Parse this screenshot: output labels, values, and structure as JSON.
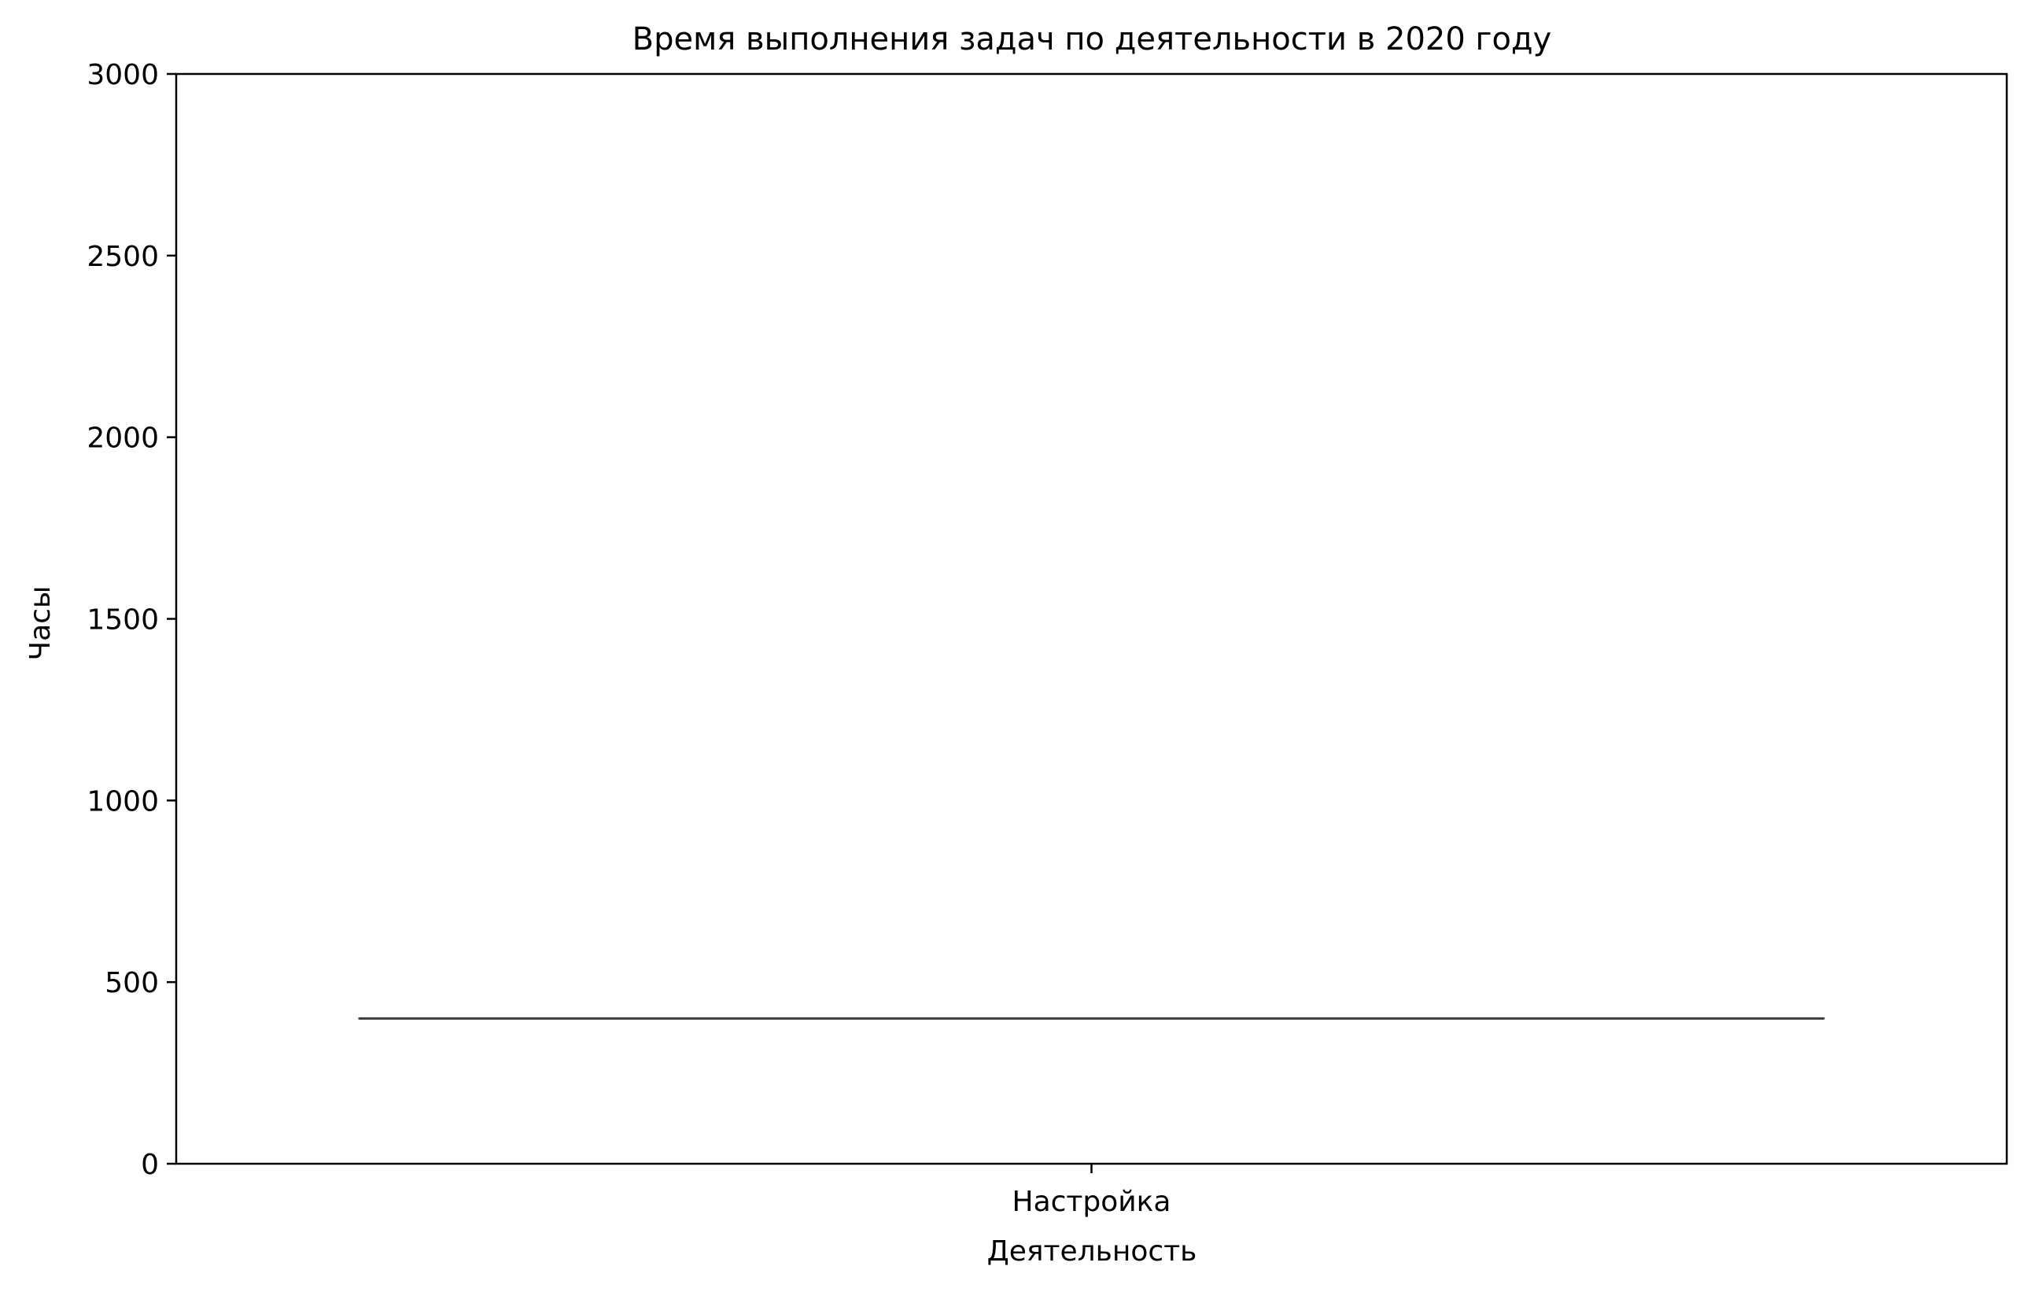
{
  "chart_data": {
    "type": "boxplot",
    "title": "Время выполнения задач по деятельности в 2020 году",
    "xlabel": "Деятельность",
    "ylabel": "Часы",
    "categories": [
      "Настройка"
    ],
    "series": [
      {
        "values": [
          400
        ],
        "median": [
          400
        ],
        "q1": [
          400
        ],
        "q3": [
          400
        ],
        "whisker_low": [
          400
        ],
        "whisker_high": [
          400
        ]
      }
    ],
    "ylim": [
      0,
      3000
    ],
    "yticks": [
      0,
      500,
      1000,
      1500,
      2000,
      2500,
      3000
    ],
    "grid": false,
    "legend": "none",
    "colors": {
      "box_line": "#3d3d3d",
      "axes": "#000000",
      "background": "#ffffff"
    }
  }
}
